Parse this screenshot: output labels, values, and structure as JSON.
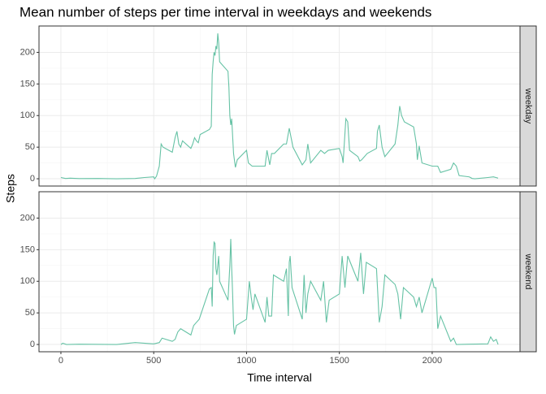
{
  "title": "Mean number of steps per time interval in weekdays and weekends",
  "x_label": "Time interval",
  "y_label": "Steps",
  "chart_data": [
    {
      "type": "line",
      "facet": "weekday",
      "color": "#66c2a5",
      "x": [
        0,
        25,
        50,
        100,
        200,
        300,
        400,
        450,
        500,
        505,
        515,
        530,
        540,
        550,
        600,
        615,
        625,
        635,
        645,
        655,
        700,
        710,
        720,
        730,
        740,
        750,
        800,
        810,
        815,
        820,
        825,
        830,
        835,
        840,
        845,
        850,
        855,
        900,
        905,
        910,
        915,
        920,
        930,
        940,
        950,
        1000,
        1010,
        1030,
        1100,
        1110,
        1125,
        1135,
        1150,
        1200,
        1215,
        1230,
        1250,
        1300,
        1320,
        1330,
        1345,
        1400,
        1420,
        1440,
        1500,
        1515,
        1520,
        1535,
        1545,
        1555,
        1600,
        1610,
        1620,
        1650,
        1700,
        1705,
        1715,
        1730,
        1745,
        1800,
        1815,
        1825,
        1835,
        1850,
        1900,
        1915,
        1920,
        1930,
        1945,
        2000,
        2030,
        2045,
        2100,
        2115,
        2130,
        2145,
        2200,
        2215,
        2230,
        2300,
        2330,
        2355
      ],
      "values": [
        2,
        0.5,
        1,
        0.3,
        0.5,
        0,
        0.5,
        2,
        3,
        0,
        4,
        20,
        55,
        50,
        42,
        65,
        75,
        55,
        50,
        60,
        48,
        55,
        65,
        60,
        57,
        70,
        78,
        83,
        165,
        185,
        200,
        195,
        210,
        205,
        230,
        215,
        185,
        170,
        145,
        100,
        85,
        95,
        40,
        18,
        30,
        45,
        25,
        20,
        20,
        45,
        22,
        40,
        40,
        55,
        55,
        80,
        50,
        22,
        30,
        55,
        25,
        45,
        40,
        45,
        48,
        35,
        25,
        95,
        90,
        45,
        35,
        28,
        30,
        40,
        48,
        75,
        85,
        50,
        35,
        55,
        85,
        115,
        100,
        90,
        82,
        55,
        30,
        52,
        25,
        20,
        20,
        10,
        15,
        25,
        20,
        5,
        3,
        0.5,
        0,
        2,
        3,
        1
      ],
      "xlim": [
        -118,
        2473
      ],
      "ylim": [
        -11.5,
        241.7
      ],
      "xticks": [
        0,
        500,
        1000,
        1500,
        2000
      ],
      "yticks": [
        0,
        50,
        100,
        150,
        200
      ],
      "grid": true
    },
    {
      "type": "line",
      "facet": "weekend",
      "color": "#66c2a5",
      "x": [
        0,
        10,
        30,
        100,
        300,
        400,
        500,
        530,
        545,
        600,
        615,
        630,
        645,
        700,
        715,
        730,
        745,
        800,
        810,
        815,
        820,
        825,
        830,
        835,
        840,
        850,
        855,
        900,
        910,
        915,
        920,
        925,
        930,
        935,
        945,
        1000,
        1015,
        1025,
        1035,
        1045,
        1100,
        1110,
        1120,
        1135,
        1145,
        1200,
        1215,
        1225,
        1230,
        1235,
        1245,
        1300,
        1310,
        1320,
        1330,
        1345,
        1400,
        1415,
        1430,
        1445,
        1500,
        1515,
        1530,
        1545,
        1600,
        1615,
        1630,
        1645,
        1700,
        1715,
        1730,
        1745,
        1800,
        1815,
        1830,
        1845,
        1900,
        1915,
        1930,
        1945,
        2000,
        2010,
        2020,
        2030,
        2045,
        2100,
        2115,
        2130,
        2200,
        2300,
        2315,
        2330,
        2345,
        2355
      ],
      "values": [
        0,
        2,
        0,
        0.5,
        0,
        3,
        1,
        3,
        10,
        5,
        8,
        20,
        25,
        15,
        30,
        35,
        40,
        88,
        90,
        60,
        140,
        162,
        160,
        120,
        110,
        140,
        100,
        70,
        125,
        167,
        120,
        80,
        30,
        16,
        30,
        40,
        100,
        75,
        55,
        80,
        35,
        75,
        45,
        45,
        110,
        100,
        120,
        45,
        130,
        140,
        90,
        40,
        110,
        50,
        80,
        100,
        70,
        100,
        35,
        70,
        80,
        140,
        90,
        140,
        100,
        145,
        80,
        130,
        120,
        35,
        60,
        110,
        95,
        80,
        40,
        90,
        75,
        60,
        75,
        50,
        105,
        90,
        90,
        25,
        45,
        5,
        10,
        0,
        0.5,
        1,
        12,
        5,
        8,
        0
      ],
      "xlim": [
        -118,
        2473
      ],
      "ylim": [
        -11.5,
        241.7
      ],
      "xticks": [
        0,
        500,
        1000,
        1500,
        2000
      ],
      "yticks": [
        0,
        50,
        100,
        150,
        200
      ],
      "grid": true
    }
  ]
}
